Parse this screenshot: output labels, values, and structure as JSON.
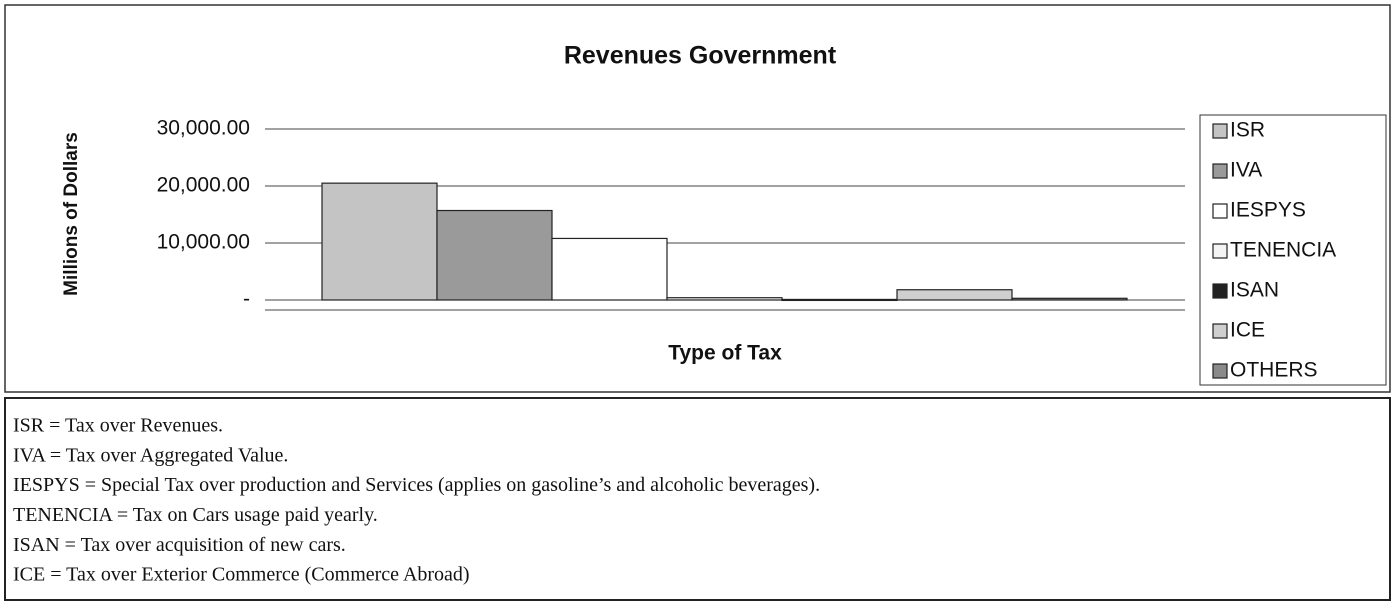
{
  "chart_data": {
    "type": "bar",
    "title": "Revenues Government",
    "x_label": "Type of Tax",
    "y_label": "Millions of Dollars",
    "ylim": [
      0,
      30000
    ],
    "yticks": [
      {
        "value": 0,
        "label": "-"
      },
      {
        "value": 10000,
        "label": "10,000.00"
      },
      {
        "value": 20000,
        "label": "20,000.00"
      },
      {
        "value": 30000,
        "label": "30,000.00"
      }
    ],
    "grid": true,
    "legend": "right",
    "series": [
      {
        "name": "ISR",
        "color": "#c4c4c4",
        "values": [
          20500
        ]
      },
      {
        "name": "IVA",
        "color": "#9a9a9a",
        "values": [
          15700
        ]
      },
      {
        "name": "IESPYS",
        "color": "#ffffff",
        "values": [
          10800
        ]
      },
      {
        "name": "TENENCIA",
        "color": "#f4f4f4",
        "values": [
          400
        ]
      },
      {
        "name": "ISAN",
        "color": "#222222",
        "values": [
          100
        ]
      },
      {
        "name": "ICE",
        "color": "#cfcfcf",
        "values": [
          1800
        ]
      },
      {
        "name": "OTHERS",
        "color": "#8a8a8a",
        "values": [
          300
        ]
      }
    ]
  },
  "notes": [
    "ISR = Tax over Revenues.",
    "IVA = Tax over Aggregated Value.",
    "IESPYS = Special Tax over production and Services (applies on gasoline’s and alcoholic beverages).",
    "TENENCIA = Tax on Cars usage paid yearly.",
    "ISAN = Tax over acquisition of new cars.",
    "ICE = Tax over Exterior Commerce (Commerce Abroad)"
  ]
}
